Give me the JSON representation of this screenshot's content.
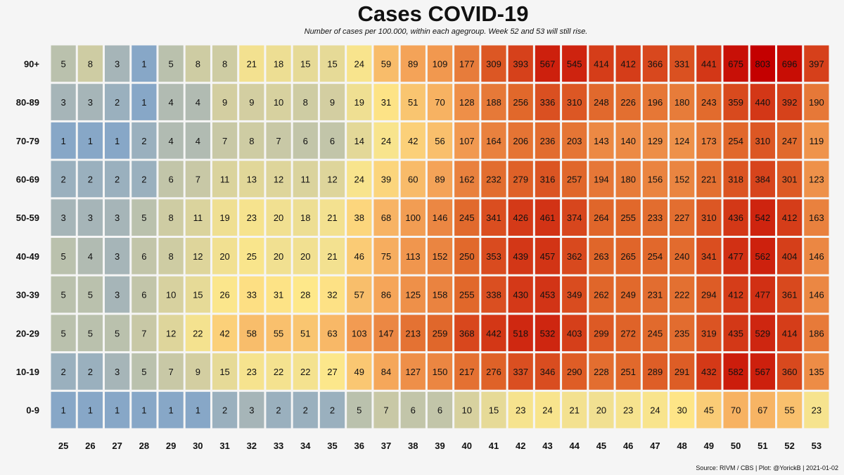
{
  "chart_data": {
    "type": "heatmap",
    "title": "Cases COVID-19",
    "subtitle": "Number of cases per 100.000, within each agegroup. Week 52 and 53 will still rise.",
    "xlabel": "",
    "ylabel": "",
    "x": [
      "25",
      "26",
      "27",
      "28",
      "29",
      "30",
      "31",
      "32",
      "33",
      "34",
      "35",
      "36",
      "37",
      "38",
      "39",
      "40",
      "41",
      "42",
      "43",
      "44",
      "45",
      "46",
      "47",
      "48",
      "49",
      "50",
      "51",
      "52",
      "53"
    ],
    "y": [
      "90+",
      "80-89",
      "70-79",
      "60-69",
      "50-59",
      "40-49",
      "30-39",
      "20-29",
      "10-19",
      "0-9"
    ],
    "values": [
      [
        5,
        8,
        3,
        1,
        5,
        8,
        8,
        21,
        18,
        15,
        15,
        24,
        59,
        89,
        109,
        177,
        309,
        393,
        567,
        545,
        414,
        412,
        366,
        331,
        441,
        675,
        803,
        696,
        397
      ],
      [
        3,
        3,
        2,
        1,
        4,
        4,
        9,
        9,
        10,
        8,
        9,
        19,
        31,
        51,
        70,
        128,
        188,
        256,
        336,
        310,
        248,
        226,
        196,
        180,
        243,
        359,
        440,
        392,
        190
      ],
      [
        1,
        1,
        1,
        2,
        4,
        4,
        7,
        8,
        7,
        6,
        6,
        14,
        24,
        42,
        56,
        107,
        164,
        206,
        236,
        203,
        143,
        140,
        129,
        124,
        173,
        254,
        310,
        247,
        119
      ],
      [
        2,
        2,
        2,
        2,
        6,
        7,
        11,
        13,
        12,
        11,
        12,
        24,
        39,
        60,
        89,
        162,
        232,
        279,
        316,
        257,
        194,
        180,
        156,
        152,
        221,
        318,
        384,
        301,
        123
      ],
      [
        3,
        3,
        3,
        5,
        8,
        11,
        19,
        23,
        20,
        18,
        21,
        38,
        68,
        100,
        146,
        245,
        341,
        426,
        461,
        374,
        264,
        255,
        233,
        227,
        310,
        436,
        542,
        412,
        163
      ],
      [
        5,
        4,
        3,
        6,
        8,
        12,
        20,
        25,
        20,
        20,
        21,
        46,
        75,
        113,
        152,
        250,
        353,
        439,
        457,
        362,
        263,
        265,
        254,
        240,
        341,
        477,
        562,
        404,
        146
      ],
      [
        5,
        5,
        3,
        6,
        10,
        15,
        26,
        33,
        31,
        28,
        32,
        57,
        86,
        125,
        158,
        255,
        338,
        430,
        453,
        349,
        262,
        249,
        231,
        222,
        294,
        412,
        477,
        361,
        146
      ],
      [
        5,
        5,
        5,
        7,
        12,
        22,
        42,
        58,
        55,
        51,
        63,
        103,
        147,
        213,
        259,
        368,
        442,
        518,
        532,
        403,
        299,
        272,
        245,
        235,
        319,
        435,
        529,
        414,
        186
      ],
      [
        2,
        2,
        3,
        5,
        7,
        9,
        15,
        23,
        22,
        22,
        27,
        49,
        84,
        127,
        150,
        217,
        276,
        337,
        346,
        290,
        228,
        251,
        289,
        291,
        432,
        582,
        567,
        360,
        135
      ],
      [
        1,
        1,
        1,
        1,
        1,
        1,
        2,
        3,
        2,
        2,
        2,
        5,
        7,
        6,
        6,
        10,
        15,
        23,
        24,
        21,
        20,
        23,
        24,
        30,
        45,
        70,
        67,
        55,
        23
      ]
    ],
    "colorscale": [
      "#87a7c7",
      "#a6b5b8",
      "#d4cfa0",
      "#fee88a",
      "#f5a559",
      "#e0662a",
      "#c40000"
    ],
    "colorscale_type": "log",
    "legend": "none"
  },
  "caption": {
    "source": "Source: RIVM / CBS | Plot: @YorickB |  2021-01-02"
  }
}
